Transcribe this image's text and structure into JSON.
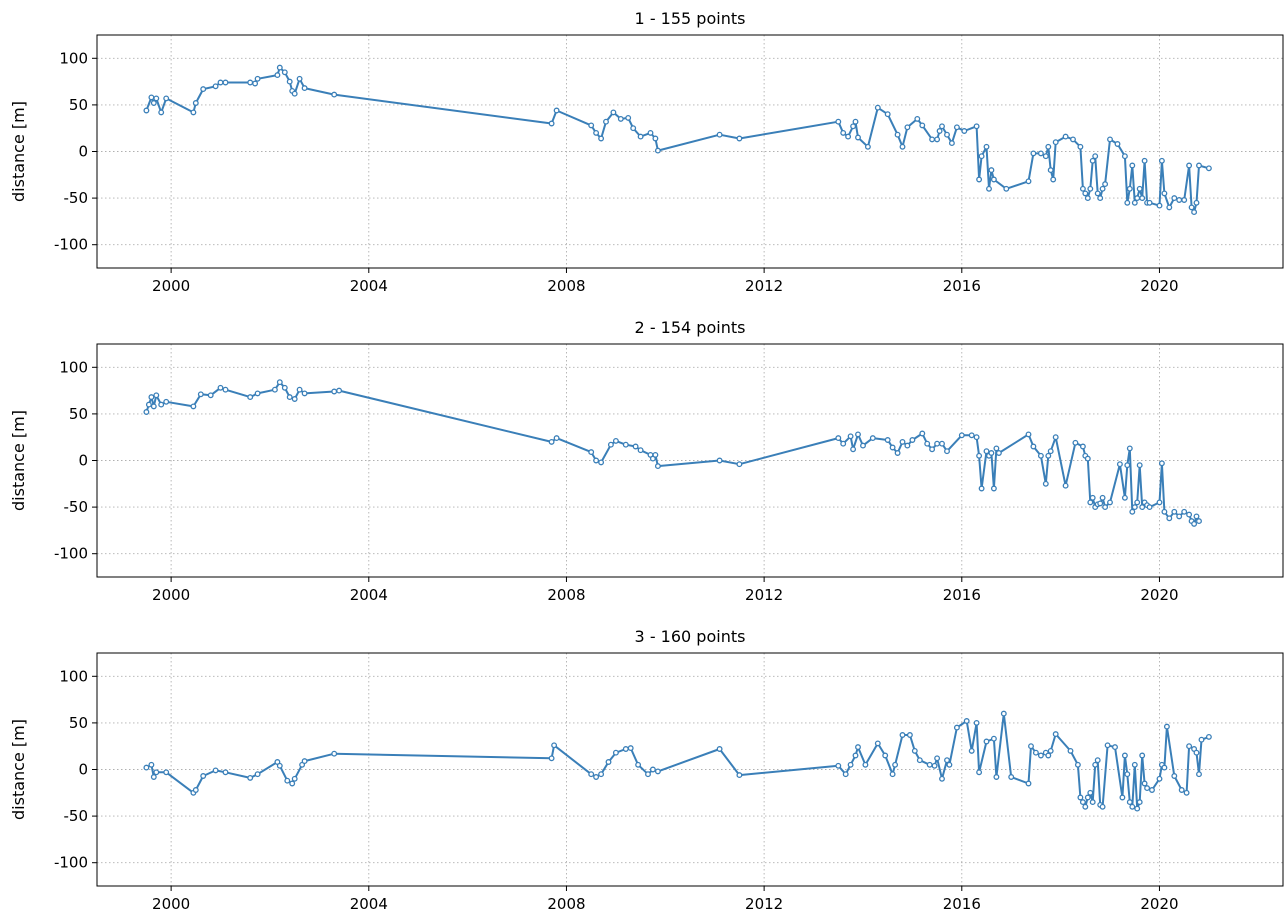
{
  "chart_data": [
    {
      "type": "line",
      "title": "1 - 155 points",
      "xlabel": "",
      "ylabel": "distance [m]",
      "xlim": [
        1998.5,
        2022.5
      ],
      "ylim": [
        -125,
        125
      ],
      "x_ticks": [
        2000,
        2004,
        2008,
        2012,
        2016,
        2020
      ],
      "y_ticks": [
        100,
        50,
        0,
        -50,
        -100
      ],
      "grid": true,
      "color": "#3a7fb8",
      "x": [
        1999.5,
        1999.6,
        1999.65,
        1999.7,
        1999.8,
        1999.9,
        2000.45,
        2000.5,
        2000.65,
        2000.9,
        2001.0,
        2001.1,
        2001.6,
        2001.7,
        2001.75,
        2002.15,
        2002.2,
        2002.3,
        2002.4,
        2002.45,
        2002.5,
        2002.6,
        2002.7,
        2003.3,
        2007.7,
        2007.8,
        2008.5,
        2008.6,
        2008.7,
        2008.8,
        2008.95,
        2009.1,
        2009.25,
        2009.35,
        2009.5,
        2009.7,
        2009.8,
        2009.85,
        2011.1,
        2011.5,
        2013.5,
        2013.6,
        2013.7,
        2013.8,
        2013.85,
        2013.9,
        2014.1,
        2014.3,
        2014.5,
        2014.7,
        2014.8,
        2014.9,
        2015.1,
        2015.2,
        2015.4,
        2015.5,
        2015.55,
        2015.6,
        2015.7,
        2015.8,
        2015.9,
        2016.05,
        2016.3,
        2016.35,
        2016.4,
        2016.5,
        2016.55,
        2016.6,
        2016.65,
        2016.9,
        2017.35,
        2017.45,
        2017.6,
        2017.7,
        2017.75,
        2017.8,
        2017.85,
        2017.9,
        2018.1,
        2018.25,
        2018.4,
        2018.45,
        2018.5,
        2018.55,
        2018.6,
        2018.65,
        2018.7,
        2018.75,
        2018.8,
        2018.85,
        2018.9,
        2019.0,
        2019.15,
        2019.3,
        2019.35,
        2019.4,
        2019.45,
        2019.5,
        2019.55,
        2019.6,
        2019.65,
        2019.7,
        2019.75,
        2019.8,
        2020.0,
        2020.05,
        2020.1,
        2020.2,
        2020.3,
        2020.4,
        2020.5,
        2020.6,
        2020.65,
        2020.7,
        2020.75,
        2020.8,
        2021.0
      ],
      "y": [
        44,
        58,
        52,
        57,
        42,
        57,
        42,
        52,
        67,
        70,
        74,
        74,
        74,
        73,
        78,
        82,
        90,
        85,
        75,
        65,
        62,
        78,
        68,
        61,
        30,
        44,
        28,
        20,
        14,
        32,
        42,
        35,
        36,
        25,
        16,
        20,
        14,
        1,
        18,
        14,
        32,
        20,
        16,
        27,
        32,
        15,
        5,
        47,
        40,
        18,
        5,
        26,
        35,
        28,
        13,
        13,
        22,
        27,
        18,
        9,
        26,
        22,
        27,
        -30,
        -5,
        5,
        -40,
        -20,
        -30,
        -40,
        -32,
        -2,
        -2,
        -5,
        5,
        -20,
        -30,
        10,
        16,
        13,
        5,
        -40,
        -45,
        -50,
        -40,
        -10,
        -5,
        -45,
        -50,
        -40,
        -35,
        13,
        8,
        -5,
        -55,
        -40,
        -15,
        -55,
        -50,
        -40,
        -50,
        -10,
        -55,
        -55,
        -58,
        -10,
        -45,
        -60,
        -50,
        -52,
        -52,
        -15,
        -60,
        -65,
        -55,
        -15,
        -18
      ]
    },
    {
      "type": "line",
      "title": "2 - 154 points",
      "xlabel": "",
      "ylabel": "distance [m]",
      "xlim": [
        1998.5,
        2022.5
      ],
      "ylim": [
        -125,
        125
      ],
      "x_ticks": [
        2000,
        2004,
        2008,
        2012,
        2016,
        2020
      ],
      "y_ticks": [
        100,
        50,
        0,
        -50,
        -100
      ],
      "grid": true,
      "color": "#3a7fb8",
      "x": [
        1999.5,
        1999.55,
        1999.6,
        1999.65,
        1999.7,
        1999.8,
        1999.9,
        2000.45,
        2000.6,
        2000.8,
        2001.0,
        2001.1,
        2001.6,
        2001.75,
        2002.1,
        2002.2,
        2002.3,
        2002.4,
        2002.5,
        2002.6,
        2002.7,
        2003.3,
        2003.4,
        2007.7,
        2007.8,
        2008.5,
        2008.6,
        2008.7,
        2008.9,
        2009.0,
        2009.2,
        2009.4,
        2009.5,
        2009.7,
        2009.75,
        2009.8,
        2009.85,
        2011.1,
        2011.5,
        2013.5,
        2013.6,
        2013.75,
        2013.8,
        2013.9,
        2014.0,
        2014.2,
        2014.5,
        2014.6,
        2014.7,
        2014.8,
        2014.9,
        2015.0,
        2015.2,
        2015.3,
        2015.4,
        2015.5,
        2015.6,
        2015.7,
        2016.0,
        2016.2,
        2016.3,
        2016.35,
        2016.4,
        2016.5,
        2016.55,
        2016.6,
        2016.65,
        2016.7,
        2016.75,
        2017.35,
        2017.45,
        2017.6,
        2017.7,
        2017.75,
        2017.8,
        2017.9,
        2018.1,
        2018.3,
        2018.45,
        2018.5,
        2018.55,
        2018.6,
        2018.65,
        2018.7,
        2018.75,
        2018.8,
        2018.85,
        2018.9,
        2019.0,
        2019.2,
        2019.3,
        2019.35,
        2019.4,
        2019.45,
        2019.5,
        2019.55,
        2019.6,
        2019.65,
        2019.7,
        2019.75,
        2019.8,
        2020.0,
        2020.05,
        2020.1,
        2020.2,
        2020.3,
        2020.4,
        2020.5,
        2020.6,
        2020.65,
        2020.7,
        2020.75,
        2020.8
      ],
      "y": [
        52,
        60,
        68,
        58,
        70,
        60,
        63,
        58,
        71,
        70,
        78,
        76,
        68,
        72,
        76,
        84,
        78,
        68,
        66,
        76,
        72,
        74,
        75,
        20,
        24,
        9,
        0,
        -2,
        17,
        21,
        17,
        15,
        11,
        6,
        2,
        6,
        -6,
        0,
        -4,
        24,
        18,
        26,
        12,
        28,
        16,
        24,
        22,
        14,
        8,
        20,
        16,
        22,
        29,
        18,
        12,
        18,
        18,
        10,
        27,
        27,
        25,
        5,
        -30,
        10,
        5,
        8,
        -30,
        13,
        8,
        28,
        15,
        5,
        -25,
        5,
        10,
        25,
        -27,
        19,
        15,
        5,
        2,
        -45,
        -40,
        -50,
        -47,
        -46,
        -40,
        -50,
        -45,
        -4,
        -40,
        -5,
        13,
        -55,
        -50,
        -45,
        -5,
        -50,
        -45,
        -48,
        -50,
        -45,
        -3,
        -55,
        -62,
        -55,
        -60,
        -55,
        -58,
        -65,
        -68,
        -60,
        -65
      ]
    },
    {
      "type": "line",
      "title": "3 - 160 points",
      "xlabel": "",
      "ylabel": "distance [m]",
      "xlim": [
        1998.5,
        2022.5
      ],
      "ylim": [
        -125,
        125
      ],
      "x_ticks": [
        2000,
        2004,
        2008,
        2012,
        2016,
        2020
      ],
      "y_ticks": [
        100,
        50,
        0,
        -50,
        -100
      ],
      "grid": true,
      "color": "#3a7fb8",
      "x": [
        1999.5,
        1999.6,
        1999.65,
        1999.7,
        1999.9,
        2000.45,
        2000.5,
        2000.65,
        2000.9,
        2001.1,
        2001.6,
        2001.75,
        2002.15,
        2002.2,
        2002.35,
        2002.45,
        2002.5,
        2002.65,
        2002.7,
        2003.3,
        2007.7,
        2007.75,
        2008.5,
        2008.6,
        2008.7,
        2008.85,
        2009.0,
        2009.2,
        2009.3,
        2009.45,
        2009.65,
        2009.75,
        2009.85,
        2011.1,
        2011.5,
        2013.5,
        2013.65,
        2013.75,
        2013.85,
        2013.9,
        2014.05,
        2014.3,
        2014.45,
        2014.6,
        2014.65,
        2014.8,
        2014.95,
        2015.05,
        2015.15,
        2015.35,
        2015.45,
        2015.5,
        2015.6,
        2015.7,
        2015.75,
        2015.9,
        2016.1,
        2016.2,
        2016.3,
        2016.35,
        2016.5,
        2016.65,
        2016.7,
        2016.85,
        2017.0,
        2017.35,
        2017.4,
        2017.5,
        2017.6,
        2017.7,
        2017.75,
        2017.8,
        2017.9,
        2018.2,
        2018.35,
        2018.4,
        2018.45,
        2018.5,
        2018.55,
        2018.6,
        2018.65,
        2018.7,
        2018.75,
        2018.8,
        2018.85,
        2018.95,
        2019.1,
        2019.25,
        2019.3,
        2019.35,
        2019.4,
        2019.45,
        2019.5,
        2019.55,
        2019.6,
        2019.65,
        2019.7,
        2019.75,
        2019.85,
        2020.0,
        2020.05,
        2020.1,
        2020.15,
        2020.3,
        2020.45,
        2020.55,
        2020.6,
        2020.7,
        2020.75,
        2020.8,
        2020.85,
        2021.0
      ],
      "y": [
        2,
        5,
        -8,
        -3,
        -3,
        -25,
        -22,
        -7,
        -1,
        -3,
        -9,
        -5,
        8,
        4,
        -12,
        -15,
        -10,
        5,
        9,
        17,
        12,
        26,
        -5,
        -8,
        -5,
        8,
        18,
        22,
        23,
        5,
        -5,
        0,
        -2,
        22,
        -6,
        4,
        -5,
        5,
        15,
        24,
        5,
        28,
        15,
        -5,
        5,
        37,
        37,
        20,
        10,
        5,
        4,
        12,
        -10,
        10,
        5,
        45,
        52,
        20,
        50,
        -3,
        30,
        33,
        -8,
        60,
        -8,
        -15,
        25,
        18,
        15,
        18,
        15,
        20,
        38,
        20,
        5,
        -30,
        -35,
        -40,
        -30,
        -25,
        -35,
        5,
        10,
        -38,
        -40,
        26,
        24,
        -30,
        15,
        -5,
        -35,
        -40,
        5,
        -42,
        -35,
        15,
        -15,
        -20,
        -22,
        -10,
        5,
        2,
        46,
        -7,
        -22,
        -25,
        25,
        22,
        18,
        -5,
        32,
        35
      ]
    }
  ]
}
